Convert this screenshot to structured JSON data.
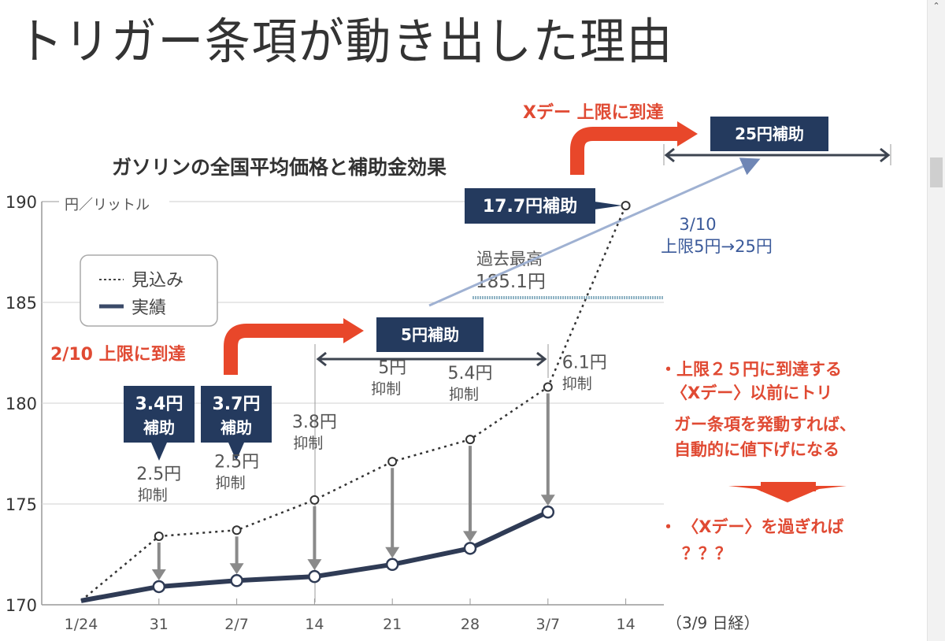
{
  "slide": {
    "title": "トリガー条項が動き出した理由"
  },
  "chart_data": {
    "type": "line",
    "title": "ガソリンの全国平均価格と補助金効果",
    "ylabel": "円／リットル",
    "source": "（3/9 日経）",
    "ylim": [
      170,
      190
    ],
    "yticks": [
      "170",
      "175",
      "180",
      "185",
      "190"
    ],
    "ytick_values": [
      170,
      175,
      180,
      185,
      190
    ],
    "categories": [
      "1/24",
      "31",
      "2/7",
      "14",
      "21",
      "28",
      "3/7",
      "14"
    ],
    "legend": {
      "position": "upper-left",
      "expected": "見込み",
      "actual": "実績"
    },
    "series": [
      {
        "name": "見込み",
        "style": "dotted",
        "values": [
          170.2,
          173.4,
          173.7,
          175.2,
          177.1,
          178.2,
          180.8,
          189.8
        ]
      },
      {
        "name": "実績",
        "style": "solid",
        "values": [
          170.2,
          170.9,
          171.2,
          171.4,
          172.0,
          172.8,
          174.6,
          null
        ]
      }
    ],
    "suppression_labels": [
      {
        "index": 1,
        "amount": "2.5円",
        "word": "抑制"
      },
      {
        "index": 2,
        "amount": "2.5円",
        "word": "抑制"
      },
      {
        "index": 3,
        "amount": "3.8円",
        "word": "抑制"
      },
      {
        "index": 4,
        "amount": "5円",
        "word": "抑制"
      },
      {
        "index": 5,
        "amount": "5.4円",
        "word": "抑制"
      },
      {
        "index": 6,
        "amount": "6.1円",
        "word": "抑制"
      }
    ],
    "subsidy_boxes": [
      {
        "line1": "3.4円",
        "line2": "補助"
      },
      {
        "line1": "3.7円",
        "line2": "補助"
      }
    ],
    "subsidy_17": "17.7円補助",
    "subsidy_5": "5円補助",
    "subsidy_25": "25円補助",
    "record_high": {
      "label1": "過去最高",
      "label2": "185.1円",
      "value": 185.1
    },
    "annotations": {
      "reach_limit_0210": "2/10 上限に到達",
      "x_day": "Xデー 上限に到達",
      "change_date": "3/10",
      "change_text": "上限5円→25円"
    }
  },
  "notes": {
    "bullet1": [
      "・上限２５円に到達する",
      "〈Xデー〉以前にトリ",
      "ガー条項を発動すれば、",
      "自動的に値下げになる"
    ],
    "bullet2": [
      "・ 〈Xデー〉を過ぎれば",
      "？？？"
    ]
  },
  "colors": {
    "navy": "#243a5e",
    "orange": "#e8472a",
    "red_text": "#e04a33",
    "blue_text": "#3b5a9a",
    "grid": "#c9c9c9",
    "text": "#444444"
  }
}
